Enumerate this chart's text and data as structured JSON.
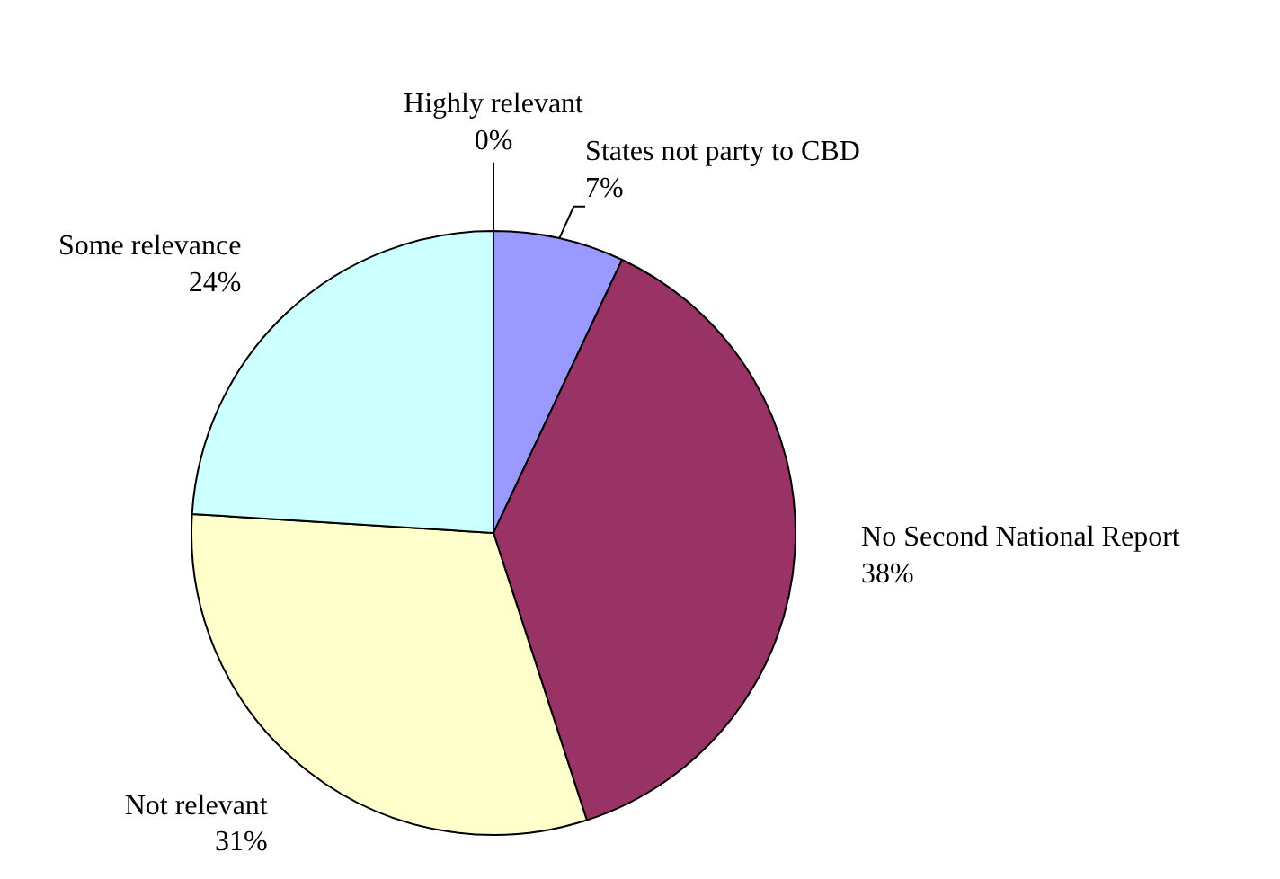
{
  "chart_data": {
    "type": "pie",
    "categories": [
      "States not party to CBD",
      "No Second National Report",
      "Not relevant",
      "Some relevance",
      "Highly relevant"
    ],
    "values": [
      7,
      38,
      31,
      24,
      0
    ],
    "colors": [
      "#9999ff",
      "#993366",
      "#ffffcc",
      "#ccffff",
      "#ffffff"
    ],
    "data_labels": true,
    "value_labels": [
      "7%",
      "38%",
      "31%",
      "24%",
      "0%"
    ]
  }
}
